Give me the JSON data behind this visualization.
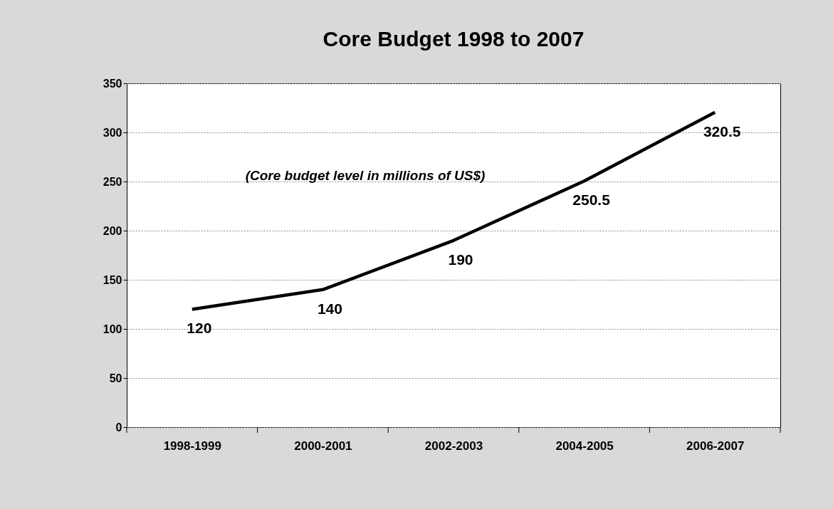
{
  "chart_data": {
    "type": "line",
    "title": "Core Budget 1998 to 2007",
    "categories": [
      "1998-1999",
      "2000-2001",
      "2002-2003",
      "2004-2005",
      "2006-2007"
    ],
    "values": [
      120,
      140,
      190,
      250.5,
      320.5
    ],
    "color": "#000000",
    "ylim": [
      0,
      350
    ],
    "yticks": [
      0,
      50,
      100,
      150,
      200,
      250,
      300,
      350
    ],
    "grid": "y",
    "line_style": "solid",
    "marker": "none",
    "data_labels": true,
    "annotations": [
      "(Core budget level in millions of US$)"
    ]
  }
}
